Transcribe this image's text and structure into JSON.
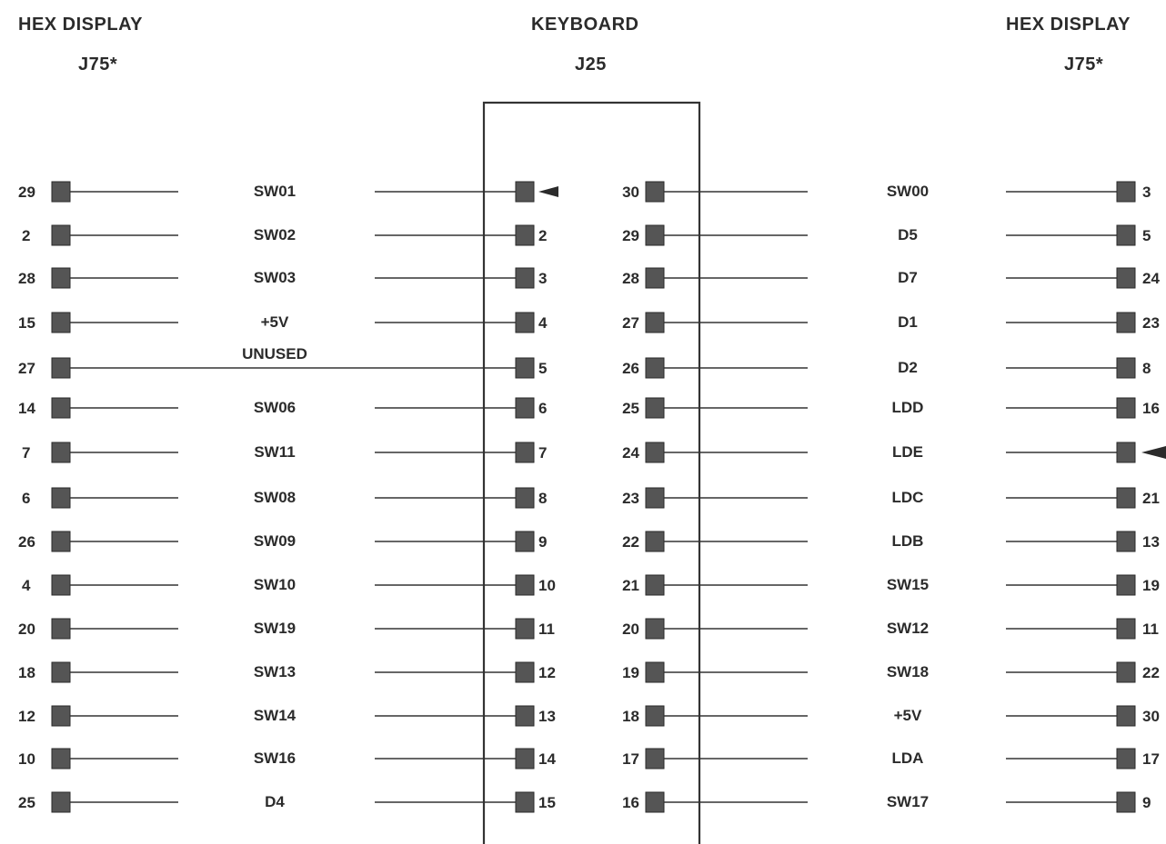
{
  "headers": {
    "left_title": "HEX DISPLAY",
    "left_connector": "J75*",
    "center_title": "KEYBOARD",
    "center_connector": "J25",
    "right_title": "HEX DISPLAY",
    "right_connector": "J75*"
  },
  "left_rows": [
    {
      "hex_pin": "29",
      "signal": "SW01",
      "kb_pin": "",
      "key_marker": true
    },
    {
      "hex_pin": "2",
      "signal": "SW02",
      "kb_pin": "2"
    },
    {
      "hex_pin": "28",
      "signal": "SW03",
      "kb_pin": "3"
    },
    {
      "hex_pin": "15",
      "signal": "+5V",
      "kb_pin": "4"
    },
    {
      "hex_pin": "27",
      "signal": "UNUSED",
      "kb_pin": "5",
      "continuous": true
    },
    {
      "hex_pin": "14",
      "signal": "SW06",
      "kb_pin": "6"
    },
    {
      "hex_pin": "7",
      "signal": "SW11",
      "kb_pin": "7"
    },
    {
      "hex_pin": "6",
      "signal": "SW08",
      "kb_pin": "8"
    },
    {
      "hex_pin": "26",
      "signal": "SW09",
      "kb_pin": "9"
    },
    {
      "hex_pin": "4",
      "signal": "SW10",
      "kb_pin": "10"
    },
    {
      "hex_pin": "20",
      "signal": "SW19",
      "kb_pin": "11"
    },
    {
      "hex_pin": "18",
      "signal": "SW13",
      "kb_pin": "12"
    },
    {
      "hex_pin": "12",
      "signal": "SW14",
      "kb_pin": "13"
    },
    {
      "hex_pin": "10",
      "signal": "SW16",
      "kb_pin": "14"
    },
    {
      "hex_pin": "25",
      "signal": "D4",
      "kb_pin": "15"
    }
  ],
  "right_rows": [
    {
      "kb_pin": "30",
      "signal": "SW00",
      "hex_pin": "3"
    },
    {
      "kb_pin": "29",
      "signal": "D5",
      "hex_pin": "5"
    },
    {
      "kb_pin": "28",
      "signal": "D7",
      "hex_pin": "24"
    },
    {
      "kb_pin": "27",
      "signal": "D1",
      "hex_pin": "23"
    },
    {
      "kb_pin": "26",
      "signal": "D2",
      "hex_pin": "8"
    },
    {
      "kb_pin": "25",
      "signal": "LDD",
      "hex_pin": "16"
    },
    {
      "kb_pin": "24",
      "signal": "LDE",
      "hex_pin": "",
      "key_marker": true
    },
    {
      "kb_pin": "23",
      "signal": "LDC",
      "hex_pin": "21"
    },
    {
      "kb_pin": "22",
      "signal": "LDB",
      "hex_pin": "13"
    },
    {
      "kb_pin": "21",
      "signal": "SW15",
      "hex_pin": "19"
    },
    {
      "kb_pin": "20",
      "signal": "SW12",
      "hex_pin": "11"
    },
    {
      "kb_pin": "19",
      "signal": "SW18",
      "hex_pin": "22"
    },
    {
      "kb_pin": "18",
      "signal": "+5V",
      "hex_pin": "30"
    },
    {
      "kb_pin": "17",
      "signal": "LDA",
      "hex_pin": "17"
    },
    {
      "kb_pin": "16",
      "signal": "SW17",
      "hex_pin": "9"
    }
  ]
}
